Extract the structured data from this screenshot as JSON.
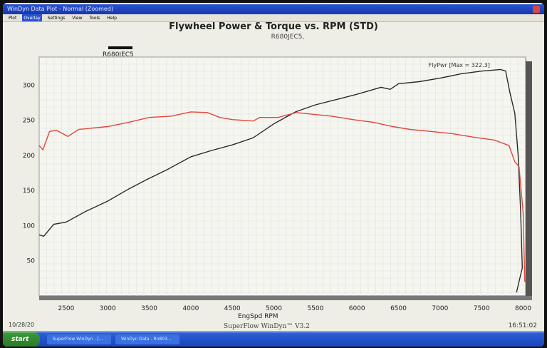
{
  "window": {
    "title": "WinDyn Data Plot - Normal   (Zoomed)"
  },
  "menu": [
    "Plot",
    "Overlay",
    "Settings",
    "View",
    "Tools",
    "Help"
  ],
  "chart_data": {
    "type": "line",
    "title": "Flywheel Power & Torque vs. RPM (STD)",
    "subtitle": "R680JEC5,",
    "legend": "R680JEC5",
    "xlabel": "EngSpd RPM",
    "ylabel": "",
    "xlim": [
      2175,
      8030
    ],
    "ylim": [
      0,
      340
    ],
    "xticks": [
      2500,
      3000,
      3500,
      4000,
      4500,
      5000,
      5500,
      6000,
      6500,
      7000,
      7500,
      8000
    ],
    "yticks": [
      50,
      100,
      150,
      200,
      250,
      300
    ],
    "grid": true,
    "annotation": "FlyPwr [Max = 322.3]",
    "series": [
      {
        "color": "#2a2a2a",
        "x": [
          2175,
          2230,
          2350,
          2500,
          2730,
          3000,
          3250,
          3460,
          3720,
          4000,
          4250,
          4500,
          4750,
          5000,
          5260,
          5500,
          5770,
          6000,
          6290,
          6400,
          6500,
          6750,
          7000,
          7250,
          7500,
          7730,
          7790,
          7840,
          7900,
          7940,
          7970,
          7990,
          7920
        ],
        "y": [
          87,
          85,
          102,
          105,
          120,
          135,
          152,
          165,
          180,
          198,
          207,
          215,
          225,
          245,
          262,
          272,
          280,
          287,
          297,
          294,
          302,
          305,
          310,
          316,
          320,
          322.3,
          320,
          290,
          260,
          200,
          120,
          40,
          5
        ]
      },
      {
        "color": "#e2463a",
        "x": [
          2175,
          2220,
          2300,
          2380,
          2520,
          2650,
          3000,
          3250,
          3500,
          3770,
          4000,
          4200,
          4350,
          4500,
          4750,
          4830,
          5050,
          5270,
          5430,
          5690,
          5950,
          6200,
          6430,
          6640,
          6900,
          7150,
          7400,
          7650,
          7830,
          7900,
          7950,
          8000,
          8020
        ],
        "y": [
          214,
          208,
          234,
          236,
          227,
          237,
          241,
          247,
          254,
          256,
          262,
          261,
          254,
          251,
          249,
          254,
          254,
          261,
          259,
          256,
          251,
          247,
          241,
          237,
          234,
          231,
          226,
          222,
          214,
          191,
          184,
          119,
          20
        ]
      }
    ]
  },
  "footer": {
    "date": "10/28/20",
    "status": "SuperFlow WinDyn™ V3.2",
    "time": "16:51:02"
  },
  "taskbar": {
    "start": "start",
    "items": [
      "SuperFlow WinDyn - [...",
      "WinDyn Data - Rn803..."
    ]
  }
}
